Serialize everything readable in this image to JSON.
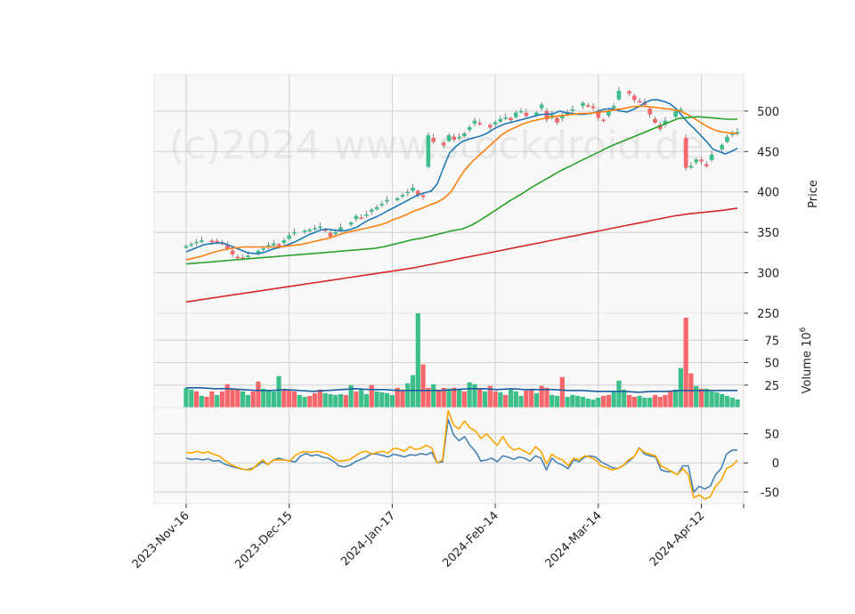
{
  "watermark": "(c)2024 www.stockdroid.de",
  "colors": {
    "up": "#26a69a",
    "up_fill": "#3dbf8a",
    "down": "#ef5350",
    "down_fill": "#f5676a",
    "ma_short": "#1f77b4",
    "ma_mid": "#ff7f0e",
    "ma_long": "#2ca02c",
    "ma_200": "#d62728",
    "vol_ma": "#1f5fa0",
    "osc_a": "#4682b4",
    "osc_b": "#ffa500",
    "panel_bg": "#f8f8f8",
    "grid": "#cfcfcf"
  },
  "chart_data": [
    {
      "type": "candlestick",
      "ylabel": "Price",
      "ylim": [
        250,
        545
      ],
      "yticks": [
        250,
        300,
        350,
        400,
        450,
        500
      ],
      "grid": true,
      "x_tick_labels": [
        "2023-Nov-16",
        "2023-Dec-15",
        "2024-Jan-17",
        "2024-Feb-14",
        "2024-Mar-14",
        "2024-Apr-12"
      ],
      "x_tick_index": [
        0,
        20,
        40,
        60,
        80,
        100
      ],
      "close": [
        333,
        335,
        338,
        340,
        338,
        339,
        336,
        330,
        323,
        318,
        318,
        321,
        327,
        330,
        334,
        336,
        333,
        340,
        346,
        350,
        352,
        353,
        355,
        357,
        352,
        345,
        350,
        356,
        362,
        370,
        368,
        372,
        378,
        381,
        385,
        390,
        392,
        396,
        400,
        405,
        396,
        394,
        470,
        462,
        458,
        470,
        465,
        468,
        472,
        480,
        488,
        484,
        480,
        486,
        490,
        492,
        489,
        498,
        500,
        494,
        498,
        508,
        490,
        495,
        486,
        495,
        498,
        502,
        510,
        506,
        504,
        492,
        488,
        500,
        506,
        525,
        522,
        514,
        512,
        508,
        496,
        486,
        478,
        488,
        500,
        502,
        430,
        432,
        440,
        438,
        432,
        446,
        458,
        468,
        472,
        474
      ],
      "series": [
        {
          "name": "",
          "color_key": "ma_short",
          "values": [
            326,
            329,
            332,
            335,
            336,
            337,
            337,
            334,
            331,
            328,
            325,
            324,
            324,
            326,
            329,
            331,
            333,
            336,
            339,
            343,
            347,
            350,
            353,
            354,
            353,
            352,
            352,
            354,
            357,
            362,
            366,
            369,
            373,
            377,
            381,
            385,
            389,
            393,
            397,
            399,
            401,
            410,
            430,
            448,
            456,
            462,
            465,
            467,
            469,
            472,
            477,
            481,
            484,
            486,
            488,
            490,
            492,
            494,
            496,
            496,
            497,
            500,
            498,
            497,
            496,
            496,
            497,
            499,
            502,
            503,
            502,
            500,
            499,
            502,
            506,
            511,
            514,
            514,
            512,
            509,
            503,
            494,
            485,
            478,
            470,
            462,
            453,
            450,
            447,
            450,
            454
          ]
        },
        {
          "name": "",
          "color_key": "ma_mid",
          "values": [
            316,
            318,
            320,
            323,
            326,
            328,
            330,
            331,
            332,
            332,
            332,
            332,
            332,
            332,
            333,
            334,
            335,
            337,
            339,
            341,
            343,
            346,
            349,
            351,
            353,
            355,
            357,
            359,
            362,
            366,
            369,
            373,
            377,
            380,
            384,
            387,
            392,
            400,
            415,
            428,
            438,
            446,
            454,
            462,
            470,
            476,
            480,
            484,
            487,
            489,
            491,
            493,
            494,
            495,
            496,
            497,
            497,
            498,
            499,
            500,
            502,
            503,
            505,
            506,
            506,
            505,
            504,
            503,
            502,
            500,
            496,
            491,
            485,
            480,
            476,
            474,
            473,
            472
          ]
        },
        {
          "name": "",
          "color_key": "ma_long",
          "values": [
            311,
            312,
            313,
            314,
            315,
            316,
            317,
            318,
            319,
            320,
            321,
            322,
            323,
            324,
            325,
            326,
            327,
            328,
            329,
            330,
            332,
            335,
            338,
            341,
            343,
            346,
            349,
            352,
            354,
            359,
            366,
            374,
            382,
            390,
            397,
            405,
            412,
            419,
            426,
            432,
            438,
            444,
            450,
            456,
            461,
            466,
            471,
            476,
            481,
            486,
            491,
            492,
            493,
            492,
            491,
            490,
            490
          ]
        },
        {
          "name": "",
          "color_key": "ma_200",
          "values": [
            264,
            267,
            270,
            273,
            276,
            279,
            282,
            285,
            288,
            291,
            294,
            297,
            300,
            303,
            306,
            310,
            314,
            318,
            322,
            326,
            330,
            334,
            338,
            342,
            346,
            350,
            354,
            358,
            362,
            366,
            370,
            373,
            375,
            377,
            380
          ]
        }
      ]
    },
    {
      "type": "bar",
      "ylabel": "Volume",
      "ylabel_exp": "6",
      "ylim": [
        0,
        105
      ],
      "yticks": [
        25,
        50,
        75
      ],
      "values": [
        22,
        20,
        18,
        13,
        12,
        18,
        14,
        18,
        26,
        21,
        20,
        18,
        14,
        18,
        29,
        21,
        19,
        18,
        35,
        20,
        19,
        18,
        14,
        12,
        13,
        16,
        20,
        16,
        15,
        14,
        15,
        14,
        25,
        18,
        20,
        15,
        25,
        18,
        17,
        16,
        14,
        22,
        20,
        27,
        36,
        105,
        48,
        22,
        26,
        20,
        22,
        21,
        22,
        20,
        18,
        28,
        26,
        21,
        18,
        24,
        18,
        17,
        14,
        20,
        18,
        13,
        19,
        21,
        16,
        24,
        22,
        14,
        13,
        34,
        12,
        14,
        13,
        12,
        10,
        9,
        11,
        13,
        14,
        18,
        30,
        20,
        14,
        12,
        13,
        11,
        11,
        14,
        12,
        14,
        18,
        20,
        44,
        100,
        38,
        24,
        21,
        21,
        18,
        17,
        15,
        13,
        11,
        9
      ],
      "up": [
        true,
        true,
        false,
        true,
        false,
        false,
        true,
        false,
        false,
        false,
        false,
        true,
        true,
        false,
        false,
        true,
        true,
        true,
        true,
        false,
        false,
        false,
        true,
        true,
        false,
        false,
        false,
        true,
        true,
        true,
        true,
        false,
        true,
        false,
        true,
        true,
        false,
        true,
        true,
        true,
        true,
        false,
        false,
        true,
        true,
        true,
        false,
        false,
        true,
        false,
        false,
        true,
        false,
        true,
        false,
        true,
        true,
        false,
        true,
        false,
        false,
        true,
        false,
        true,
        true,
        true,
        false,
        false,
        true,
        false,
        false,
        true,
        true,
        false,
        true,
        true,
        true,
        true,
        true,
        true,
        true,
        false,
        false,
        true,
        true,
        true,
        false,
        false,
        true,
        true,
        true,
        false,
        false,
        false,
        false,
        true,
        true,
        false,
        false,
        true,
        false,
        true,
        true,
        true,
        true,
        true,
        true,
        true
      ],
      "series": [
        {
          "name": "",
          "color_key": "vol_ma",
          "values": [
            22,
            22,
            21,
            21,
            20,
            19,
            19,
            20,
            19,
            18,
            19,
            20,
            21,
            20,
            20,
            19,
            19,
            19,
            19,
            20,
            21,
            21,
            20,
            21,
            20,
            20,
            20,
            19,
            19,
            18,
            18,
            18,
            17,
            18,
            18,
            19,
            19,
            19,
            19,
            19
          ]
        }
      ]
    },
    {
      "type": "line",
      "ylim": [
        -70,
        95
      ],
      "yticks": [
        -50,
        0,
        50
      ],
      "series": [
        {
          "name": "",
          "color_key": "osc_a",
          "values": [
            8,
            6,
            7,
            5,
            7,
            3,
            4,
            -2,
            -5,
            -8,
            -10,
            -12,
            -10,
            -5,
            2,
            -3,
            5,
            8,
            5,
            3,
            2,
            12,
            16,
            12,
            14,
            10,
            8,
            3,
            -5,
            -7,
            -4,
            2,
            6,
            10,
            16,
            15,
            13,
            10,
            15,
            13,
            10,
            14,
            13,
            16,
            14,
            18,
            0,
            2,
            75,
            48,
            38,
            45,
            30,
            20,
            3,
            5,
            8,
            2,
            12,
            10,
            6,
            10,
            8,
            3,
            12,
            8,
            -12,
            8,
            0,
            -4,
            -10,
            5,
            2,
            10,
            12,
            10,
            2,
            -3,
            -8,
            -10,
            -5,
            2,
            10,
            26,
            15,
            12,
            10,
            -12,
            -15,
            -15,
            -20,
            -5,
            -5,
            -50,
            -40,
            -45,
            -40,
            -20,
            -10,
            15,
            22,
            22
          ]
        },
        {
          "name": "",
          "color_key": "osc_b",
          "values": [
            18,
            17,
            20,
            17,
            19,
            15,
            12,
            5,
            -2,
            -6,
            -10,
            -12,
            -12,
            -3,
            5,
            -3,
            5,
            5,
            5,
            3,
            13,
            18,
            19,
            18,
            20,
            18,
            15,
            8,
            3,
            4,
            6,
            12,
            18,
            20,
            15,
            18,
            20,
            17,
            25,
            24,
            20,
            28,
            23,
            25,
            30,
            26,
            0,
            5,
            90,
            65,
            58,
            72,
            60,
            55,
            42,
            50,
            40,
            30,
            45,
            30,
            22,
            25,
            20,
            15,
            28,
            20,
            -2,
            15,
            8,
            5,
            -5,
            8,
            5,
            12,
            10,
            5,
            -5,
            -8,
            -12,
            -10,
            -5,
            5,
            10,
            25,
            18,
            15,
            12,
            -5,
            -10,
            -15,
            -20,
            -10,
            -20,
            -60,
            -55,
            -62,
            -58,
            -40,
            -30,
            -10,
            -5,
            5
          ]
        }
      ]
    }
  ]
}
